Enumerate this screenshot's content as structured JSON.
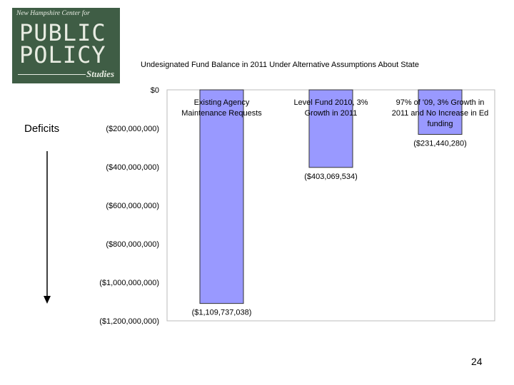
{
  "logo": {
    "tagline": "New Hampshire Center for",
    "line1": "PUBLIC",
    "line2": "POLICY",
    "line3": "Studies"
  },
  "side_label": "Deficits",
  "page_number": "24",
  "chart_data": {
    "type": "bar",
    "title": "Undesignated Fund Balance in 2011 Under Alternative Assumptions About State",
    "xlabel": "",
    "ylabel": "",
    "categories": [
      [
        "Existing Agency",
        "Maintenance Requests"
      ],
      [
        "Level Fund 2010, 3%",
        "Growth in 2011"
      ],
      [
        "97% of '09, 3% Growth in",
        "2011 and No Increase in Ed",
        "funding"
      ]
    ],
    "values": [
      -1109737038,
      -403069534,
      -231440280
    ],
    "data_labels": [
      "($1,109,737,038)",
      "($403,069,534)",
      "($231,440,280)"
    ],
    "ylim": [
      -1200000000,
      0
    ],
    "y_ticks": [
      0,
      -200000000,
      -400000000,
      -600000000,
      -800000000,
      -1000000000,
      -1200000000
    ],
    "y_tick_labels": [
      "$0",
      "($200,000,000)",
      "($400,000,000)",
      "($600,000,000)",
      "($800,000,000)",
      "($1,000,000,000)",
      "($1,200,000,000)"
    ],
    "grid": false,
    "bar_color": "#9999ff",
    "bar_border_color": "#333333"
  }
}
